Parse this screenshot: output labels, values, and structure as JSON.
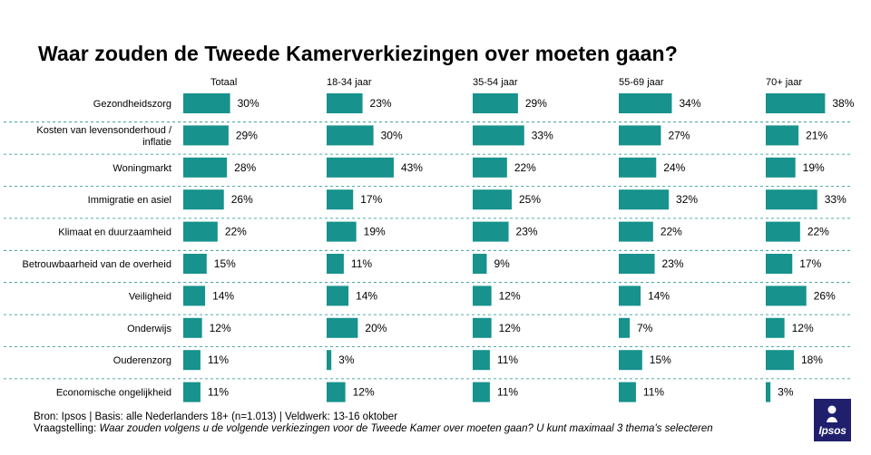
{
  "title": "Waar zouden de Tweede Kamerverkiezingen over moeten gaan?",
  "chart_data": {
    "type": "bar",
    "orientation": "horizontal",
    "unit": "%",
    "categories": [
      "Gezondheidszorg",
      "Kosten van levensonderhoud / inflatie",
      "Woningmarkt",
      "Immigratie en asiel",
      "Klimaat en duurzaamheid",
      "Betrouwbaarheid van de overheid",
      "Veiligheid",
      "Onderwijs",
      "Ouderenzorg",
      "Economische ongelijkheid"
    ],
    "category_lines": [
      [
        "Gezondheidszorg"
      ],
      [
        "Kosten van levensonderhoud /",
        "inflatie"
      ],
      [
        "Woningmarkt"
      ],
      [
        "Immigratie en asiel"
      ],
      [
        "Klimaat en duurzaamheid"
      ],
      [
        "Betrouwbaarheid van de overheid"
      ],
      [
        "Veiligheid"
      ],
      [
        "Onderwijs"
      ],
      [
        "Ouderenzorg"
      ],
      [
        "Economische ongelijkheid"
      ]
    ],
    "series": [
      {
        "name": "Totaal",
        "values": [
          30,
          29,
          28,
          26,
          22,
          15,
          14,
          12,
          11,
          11
        ]
      },
      {
        "name": "18-34 jaar",
        "values": [
          23,
          30,
          43,
          17,
          19,
          11,
          14,
          20,
          3,
          12
        ]
      },
      {
        "name": "35-54 jaar",
        "values": [
          29,
          33,
          22,
          25,
          23,
          9,
          12,
          12,
          11,
          11
        ]
      },
      {
        "name": "55-69 jaar",
        "values": [
          34,
          27,
          24,
          32,
          22,
          23,
          14,
          7,
          15,
          11
        ]
      },
      {
        "name": "70+ jaar",
        "values": [
          38,
          21,
          19,
          33,
          22,
          17,
          26,
          12,
          18,
          3
        ]
      }
    ],
    "colors": {
      "bar": "#17928c",
      "separator": "#17928c"
    }
  },
  "footer": {
    "source": "Bron: Ipsos | Basis: alle Nederlanders 18+ (n=1.013) | Veldwerk: 13-16 oktober",
    "question_label": "Vraagstelling:",
    "question_text": "Waar zouden volgens u de volgende verkiezingen voor de Tweede Kamer over moeten gaan? U kunt maximaal 3 thema's selecteren"
  },
  "logo": {
    "text": "Ipsos",
    "color": "#1f1f6e"
  }
}
